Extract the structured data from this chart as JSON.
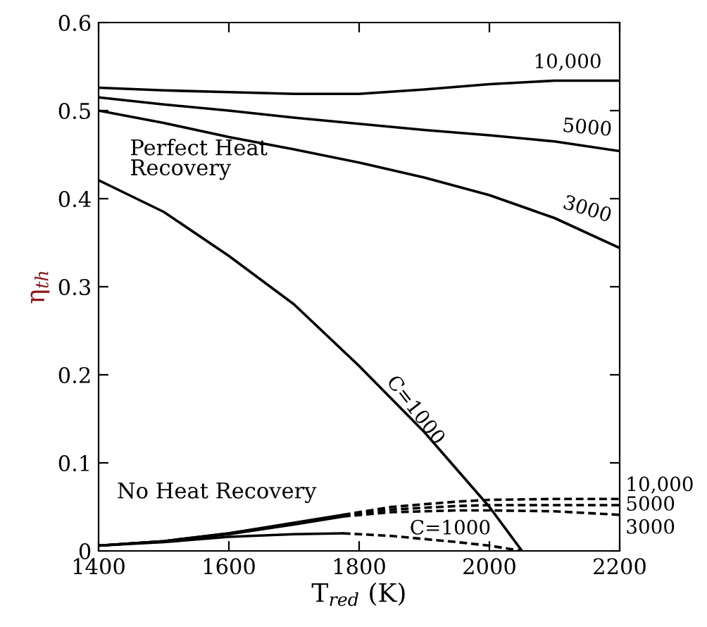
{
  "chart_data": {
    "type": "line",
    "xlabel": "T$_{red}$ (K)",
    "ylabel": "η$_{th}$",
    "xlim": [
      1400,
      2200
    ],
    "xticks": [
      1400,
      1600,
      1800,
      2000,
      2200
    ],
    "ylim": [
      0,
      0.6
    ],
    "yticks": [
      0,
      0.1,
      0.2,
      0.3,
      0.4,
      0.5,
      0.6
    ],
    "grid": false,
    "legend": false,
    "marker": "none",
    "series": [
      {
        "color": "#000000",
        "line_style": "solid",
        "x": [
          1400,
          1500,
          1600,
          1700,
          1800,
          1900,
          2000,
          2100,
          2200
        ],
        "values": [
          0.526,
          0.523,
          0.521,
          0.519,
          0.519,
          0.524,
          0.53,
          0.534,
          0.534
        ]
      },
      {
        "color": "#000000",
        "line_style": "solid",
        "x": [
          1400,
          1500,
          1600,
          1700,
          1800,
          1900,
          2000,
          2100,
          2200
        ],
        "values": [
          0.515,
          0.507,
          0.5,
          0.492,
          0.485,
          0.478,
          0.472,
          0.465,
          0.454
        ]
      },
      {
        "color": "#000000",
        "line_style": "solid",
        "x": [
          1400,
          1500,
          1600,
          1700,
          1800,
          1900,
          2000,
          2100,
          2200
        ],
        "values": [
          0.5,
          0.486,
          0.47,
          0.456,
          0.441,
          0.424,
          0.404,
          0.378,
          0.344
        ]
      },
      {
        "color": "#000000",
        "line_style": "solid",
        "x": [
          1400,
          1500,
          1600,
          1700,
          1800,
          1900,
          2000,
          2050
        ],
        "values": [
          0.421,
          0.385,
          0.335,
          0.28,
          0.21,
          0.135,
          0.05,
          0.0
        ]
      },
      {
        "color": "#000000",
        "line_style": "solid",
        "x": [
          1400,
          1500,
          1600,
          1700,
          1775
        ],
        "values": [
          0.006,
          0.011,
          0.02,
          0.032,
          0.041
        ]
      },
      {
        "color": "#000000",
        "line_style": "solid",
        "x": [
          1400,
          1500,
          1600,
          1700,
          1775
        ],
        "values": [
          0.006,
          0.011,
          0.02,
          0.031,
          0.04
        ]
      },
      {
        "color": "#000000",
        "line_style": "solid",
        "x": [
          1400,
          1500,
          1600,
          1700,
          1775
        ],
        "values": [
          0.006,
          0.011,
          0.019,
          0.03,
          0.039
        ]
      },
      {
        "color": "#000000",
        "line_style": "solid",
        "x": [
          1400,
          1500,
          1600,
          1700,
          1775
        ],
        "values": [
          0.006,
          0.01,
          0.016,
          0.019,
          0.02
        ]
      },
      {
        "color": "#000000",
        "line_style": "dashed",
        "x": [
          1775,
          1850,
          1950,
          2000,
          2100,
          2200
        ],
        "values": [
          0.041,
          0.05,
          0.056,
          0.058,
          0.059,
          0.059
        ]
      },
      {
        "color": "#000000",
        "line_style": "dashed",
        "x": [
          1775,
          1850,
          1950,
          2000,
          2100,
          2200
        ],
        "values": [
          0.04,
          0.047,
          0.051,
          0.052,
          0.052,
          0.052
        ]
      },
      {
        "color": "#000000",
        "line_style": "dashed",
        "x": [
          1775,
          1850,
          1950,
          2000,
          2100,
          2200
        ],
        "values": [
          0.039,
          0.044,
          0.046,
          0.046,
          0.045,
          0.041
        ]
      },
      {
        "color": "#000000",
        "line_style": "dashed",
        "x": [
          1775,
          1850,
          1950,
          2000,
          2050
        ],
        "values": [
          0.02,
          0.017,
          0.01,
          0.006,
          0.0
        ]
      }
    ],
    "annotations": [
      {
        "text": "10,000",
        "x": 2120,
        "y": 0.537
      },
      {
        "text": "5000",
        "x": 2150,
        "y": 0.46
      },
      {
        "text": "3000",
        "x": 2150,
        "y": 0.362
      },
      {
        "text": "C=1000",
        "x": 1880,
        "y": 0.155
      },
      {
        "text": "10,000",
        "x": 2200,
        "y": 0.059
      },
      {
        "text": "5000",
        "x": 2200,
        "y": 0.052
      },
      {
        "text": "3000",
        "x": 2200,
        "y": 0.041
      },
      {
        "text": "C=1000",
        "x": 1940,
        "y": 0.012
      },
      "Perfect Heat Recovery",
      "No Heat Recovery"
    ]
  }
}
